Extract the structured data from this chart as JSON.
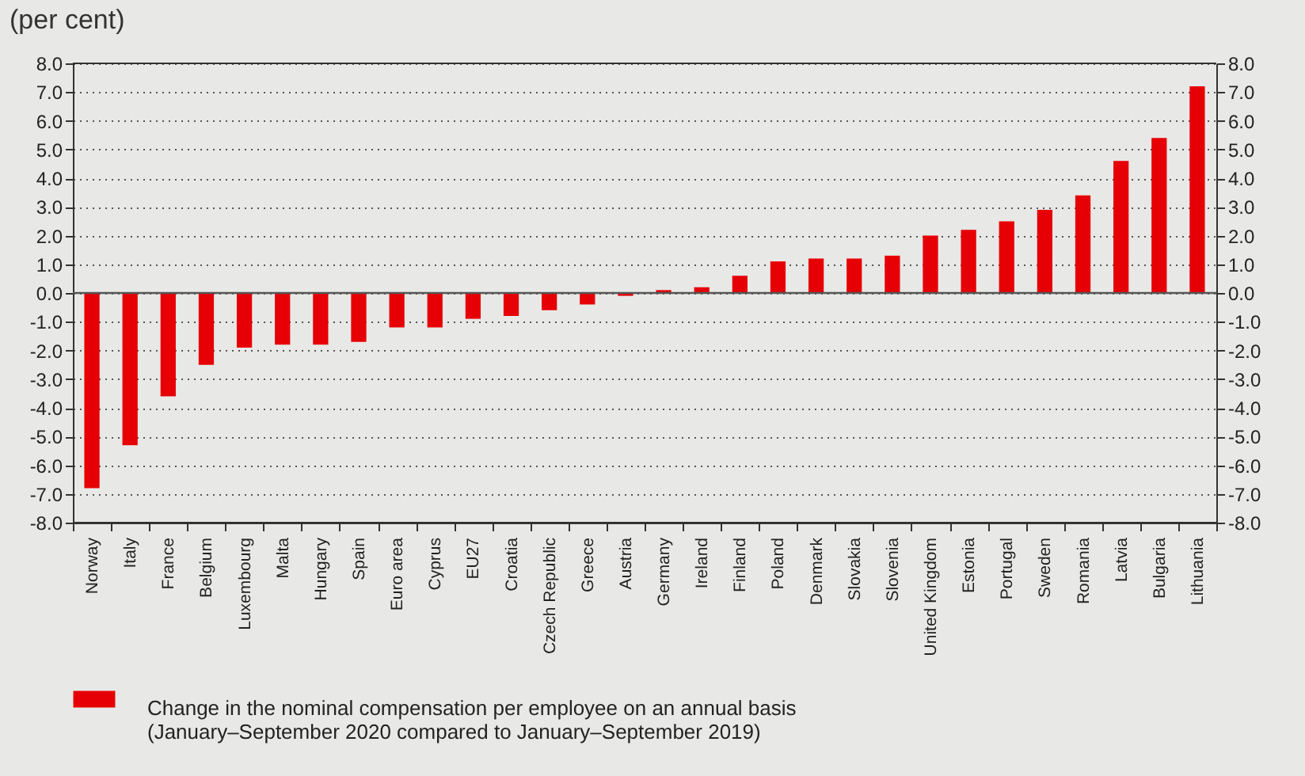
{
  "chart_data": {
    "type": "bar",
    "title": "(per cent)",
    "categories": [
      "Norway",
      "Italy",
      "France",
      "Belgium",
      "Luxembourg",
      "Malta",
      "Hungary",
      "Spain",
      "Euro area",
      "Cyprus",
      "EU27",
      "Croatia",
      "Czech Republic",
      "Greece",
      "Austria",
      "Germany",
      "Ireland",
      "Finland",
      "Poland",
      "Denmark",
      "Slovakia",
      "Slovenia",
      "United Kingdom",
      "Estonia",
      "Portugal",
      "Sweden",
      "Romania",
      "Latvia",
      "Bulgaria",
      "Lithuania"
    ],
    "series": [
      {
        "name": "Change in the nominal compensation per employee on an annual basis (January–September 2020 compared to January–September 2019)",
        "color": "#e60005",
        "values": [
          -6.8,
          -5.3,
          -3.6,
          -2.5,
          -1.9,
          -1.8,
          -1.8,
          -1.7,
          -1.2,
          -1.2,
          -0.9,
          -0.8,
          -0.6,
          -0.4,
          -0.1,
          0.1,
          0.2,
          0.6,
          1.1,
          1.2,
          1.2,
          1.3,
          2.0,
          2.2,
          2.5,
          2.9,
          3.4,
          4.6,
          5.4,
          7.2
        ]
      }
    ],
    "ylim": [
      -8,
      8
    ],
    "yticks": [
      {
        "value": -8,
        "label": "-8.0"
      },
      {
        "value": -7,
        "label": "-7.0"
      },
      {
        "value": -6,
        "label": "-6.0"
      },
      {
        "value": -5,
        "label": "-5.0"
      },
      {
        "value": -4,
        "label": "-4.0"
      },
      {
        "value": -3,
        "label": "-3.0"
      },
      {
        "value": -2,
        "label": "-2.0"
      },
      {
        "value": -1,
        "label": "-1.0"
      },
      {
        "value": 0,
        "label": "0.0"
      },
      {
        "value": 1,
        "label": "1.0"
      },
      {
        "value": 2,
        "label": "2.0"
      },
      {
        "value": 3,
        "label": "3.0"
      },
      {
        "value": 4,
        "label": "4.0"
      },
      {
        "value": 5,
        "label": "5.0"
      },
      {
        "value": 6,
        "label": "6.0"
      },
      {
        "value": 7,
        "label": "7.0"
      },
      {
        "value": 8,
        "label": "8.0"
      }
    ],
    "y2lim": [
      -8,
      8
    ],
    "y2ticks": [
      {
        "value": -8,
        "label": "-8.0"
      },
      {
        "value": -7,
        "label": "-7.0"
      },
      {
        "value": -6,
        "label": "-6.0"
      },
      {
        "value": -5,
        "label": "-5.0"
      },
      {
        "value": -4,
        "label": "-4.0"
      },
      {
        "value": -3,
        "label": "-3.0"
      },
      {
        "value": -2,
        "label": "-2.0"
      },
      {
        "value": -1,
        "label": "-1.0"
      },
      {
        "value": 0,
        "label": "0.0"
      },
      {
        "value": 1,
        "label": "1.0"
      },
      {
        "value": 2,
        "label": "2.0"
      },
      {
        "value": 3,
        "label": "3.0"
      },
      {
        "value": 4,
        "label": "4.0"
      },
      {
        "value": 5,
        "label": "5.0"
      },
      {
        "value": 6,
        "label": "6.0"
      },
      {
        "value": 7,
        "label": "7.0"
      },
      {
        "value": 8,
        "label": "8.0"
      }
    ],
    "ref_lines": [
      {
        "axis": "y",
        "value": 0,
        "color": "#555555"
      }
    ],
    "grid": "y",
    "legend": "bottom"
  }
}
